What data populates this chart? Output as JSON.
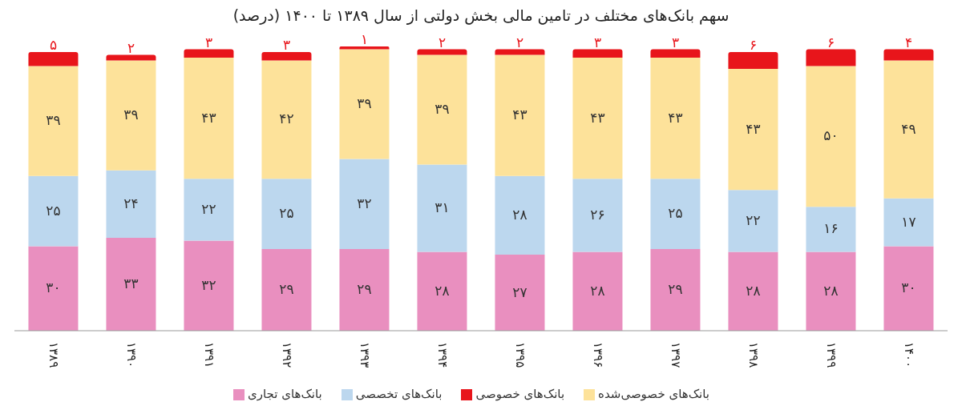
{
  "chart_data": {
    "type": "bar",
    "stacked": true,
    "title": "سهم بانک‌های مختلف در تامین مالی بخش دولتی از سال ۱۳۸۹ تا ۱۴۰۰ (درصد)",
    "categories": [
      "۱۳۸۹",
      "۱۳۹۰",
      "۱۳۹۱",
      "۱۳۹۲",
      "۱۳۹۳",
      "۱۳۹۴",
      "۱۳۹۵",
      "۱۳۹۶",
      "۱۳۹۷",
      "۱۳۹۸",
      "۱۳۹۹",
      "۱۴۰۰"
    ],
    "series": [
      {
        "name": "بانک‌های تجاری",
        "color": "#e98fbf",
        "values": [
          30,
          33,
          32,
          29,
          29,
          28,
          27,
          28,
          29,
          28,
          28,
          30
        ],
        "value_labels": [
          "۳۰",
          "۳۳",
          "۳۲",
          "۲۹",
          "۲۹",
          "۲۸",
          "۲۷",
          "۲۸",
          "۲۹",
          "۲۸",
          "۲۸",
          "۳۰"
        ]
      },
      {
        "name": "بانک‌های تخصصی",
        "color": "#bcd7ee",
        "values": [
          25,
          24,
          22,
          25,
          32,
          31,
          28,
          26,
          25,
          22,
          16,
          17
        ],
        "value_labels": [
          "۲۵",
          "۲۴",
          "۲۲",
          "۲۵",
          "۳۲",
          "۳۱",
          "۲۸",
          "۲۶",
          "۲۵",
          "۲۲",
          "۱۶",
          "۱۷"
        ]
      },
      {
        "name": "بانک‌های خصوصی‌شده",
        "color": "#fde29a",
        "values": [
          39,
          39,
          43,
          42,
          39,
          39,
          43,
          43,
          43,
          43,
          50,
          49
        ],
        "value_labels": [
          "۳۹",
          "۳۹",
          "۴۳",
          "۴۲",
          "۳۹",
          "۳۹",
          "۴۳",
          "۴۳",
          "۴۳",
          "۴۳",
          "۵۰",
          "۴۹"
        ]
      },
      {
        "name": "بانک‌های خصوصی",
        "color": "#e8151b",
        "values": [
          5,
          2,
          3,
          3,
          1,
          2,
          2,
          3,
          3,
          6,
          6,
          4
        ],
        "value_labels": [
          "۵",
          "۲",
          "۳",
          "۳",
          "۱",
          "۲",
          "۲",
          "۳",
          "۳",
          "۶",
          "۶",
          "۴"
        ]
      }
    ],
    "legend": "bottom",
    "grid": false
  }
}
